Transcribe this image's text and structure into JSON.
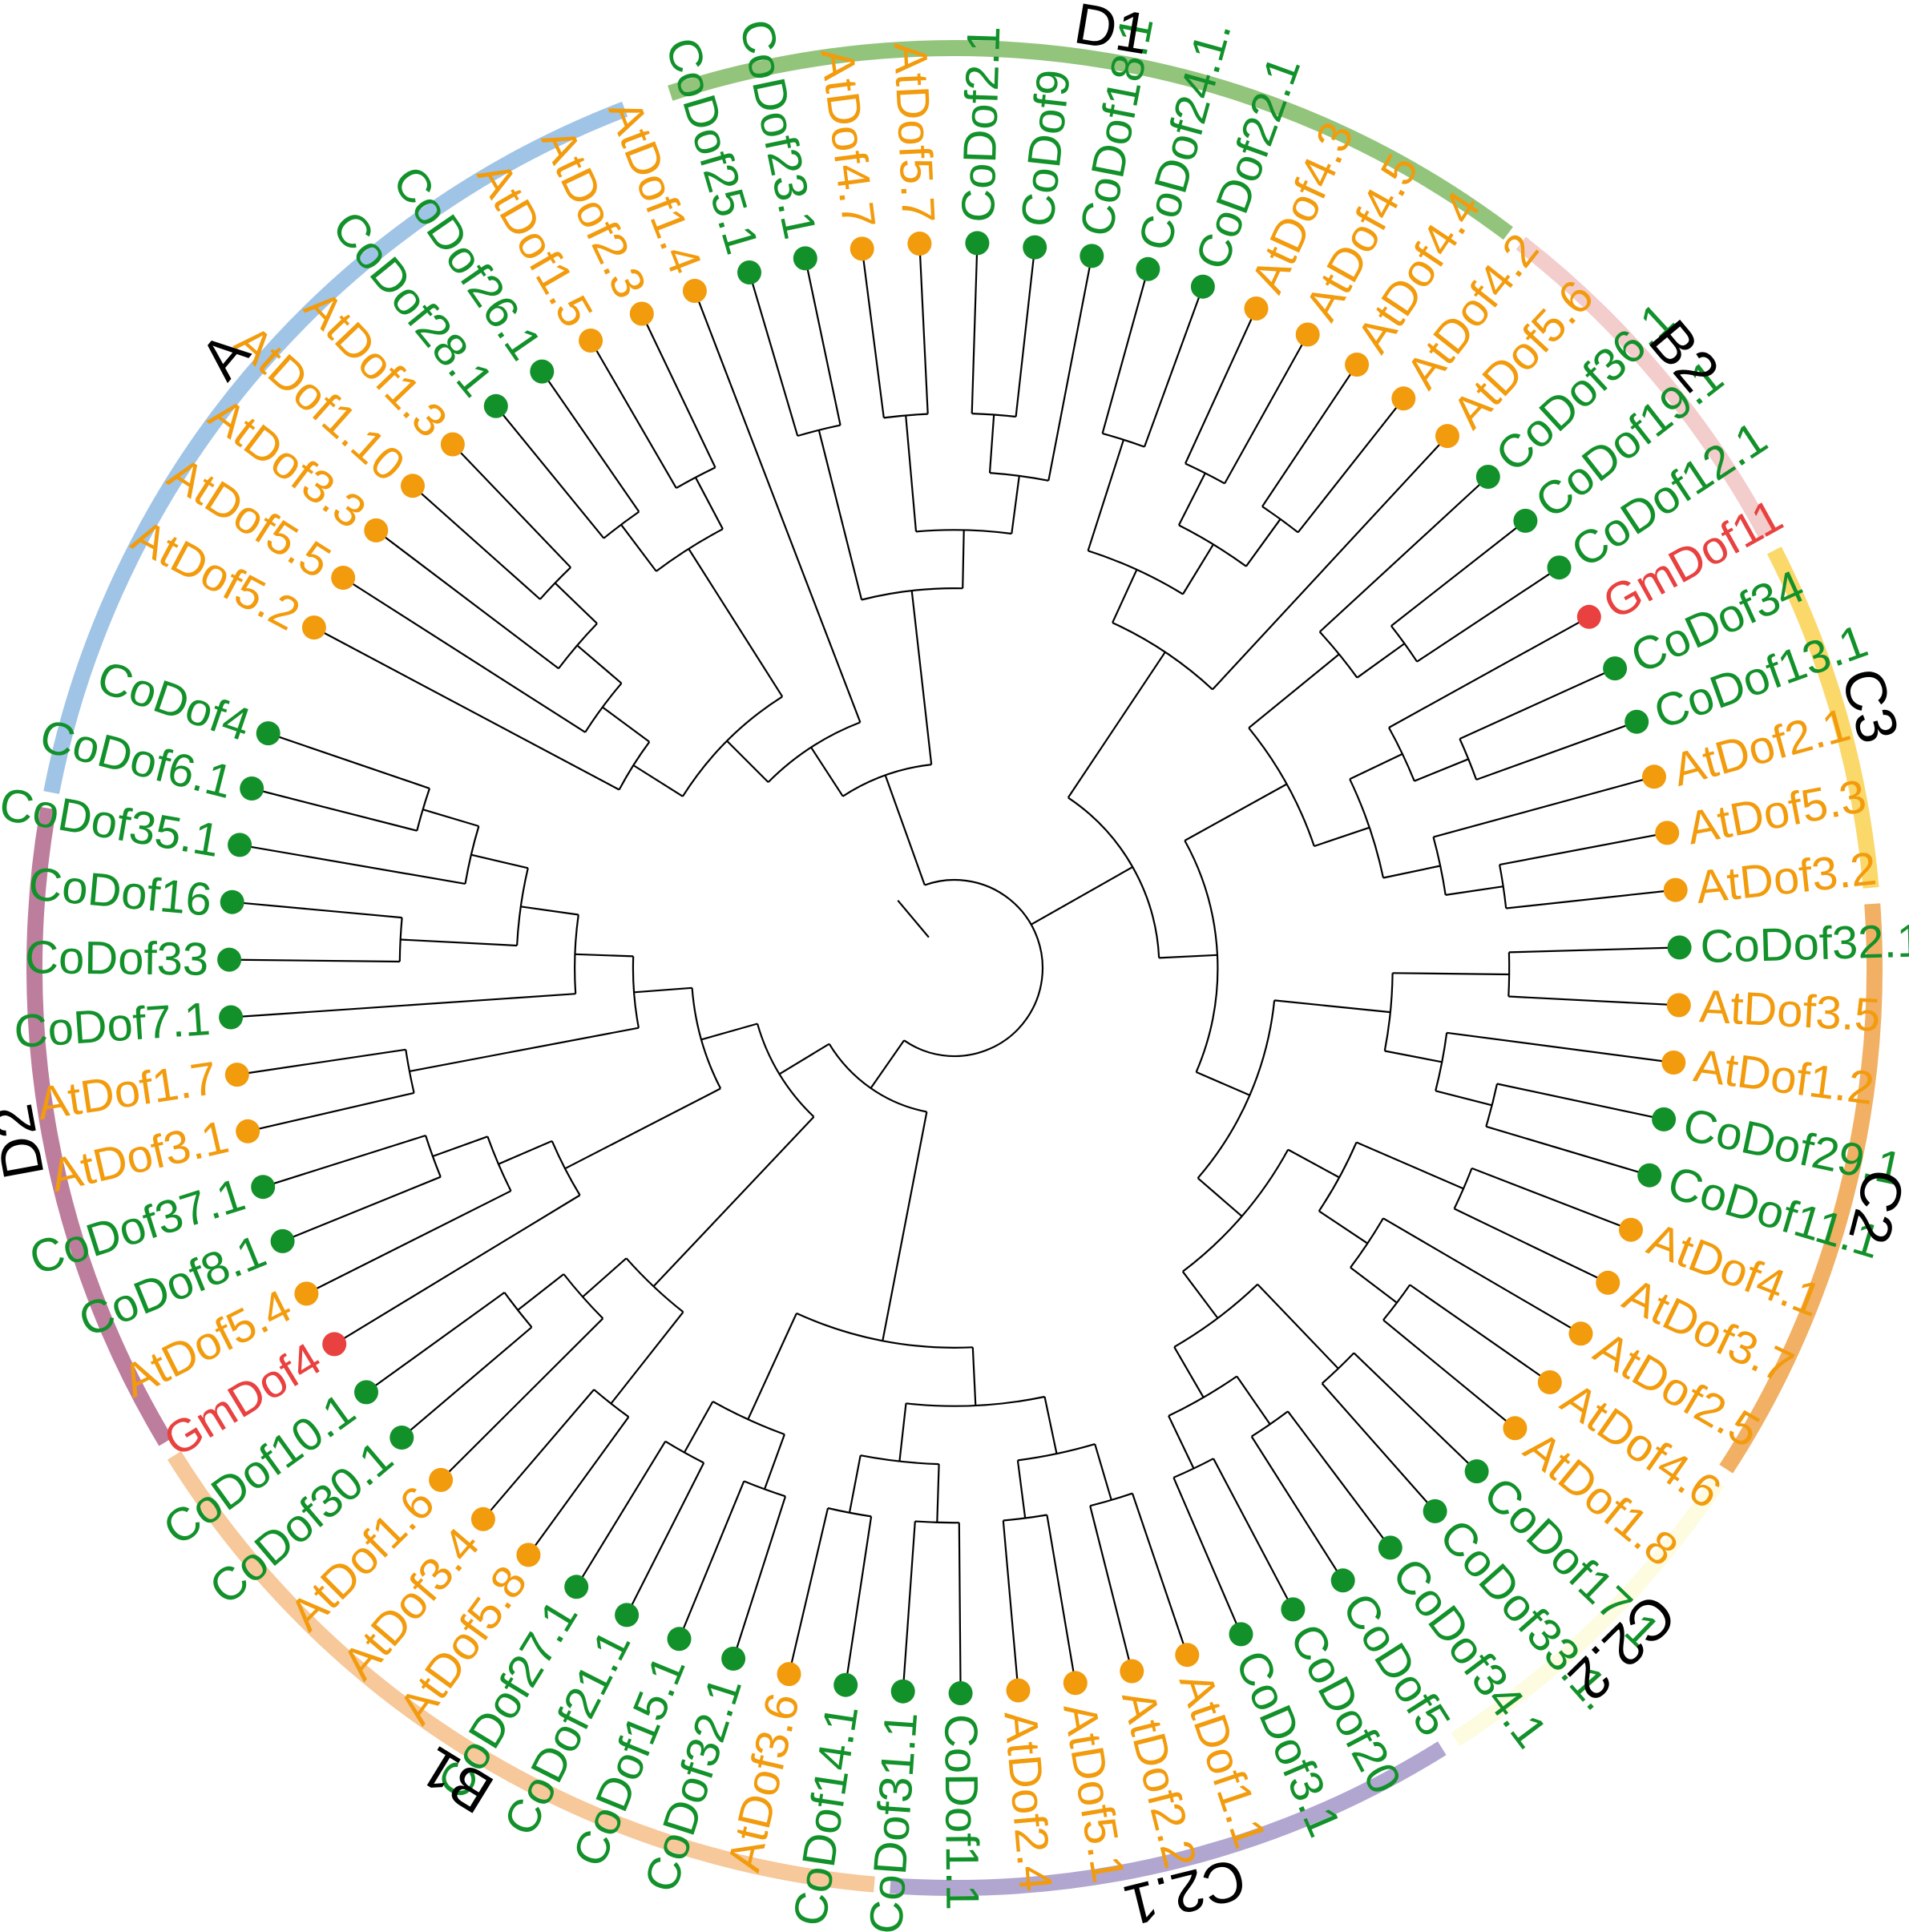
{
  "colors": {
    "Co": "#12912a",
    "At": "#f29b0c",
    "Gm": "#e8413f",
    "branch": "#000000"
  },
  "groups": [
    {
      "label": "A",
      "color": "#a0c4e6",
      "start": 111,
      "end": 169
    },
    {
      "label": "D2",
      "color": "#bd7e9e",
      "start": 170,
      "end": 211
    },
    {
      "label": "B1",
      "color": "#f6c89a",
      "start": 212,
      "end": 265
    },
    {
      "label": "C2.1",
      "color": "#b1a6d0",
      "start": 266,
      "end": 302
    },
    {
      "label": "C2.2",
      "color": "#fdfbe0",
      "start": 303,
      "end": 326
    },
    {
      "label": "C2",
      "color": "#f1b064",
      "start": 327,
      "end": 4
    },
    {
      "label": "C3",
      "color": "#fbd86a",
      "start": 5,
      "end": 27
    },
    {
      "label": "B2",
      "color": "#f3cccc",
      "start": 28,
      "end": 52
    },
    {
      "label": "D1",
      "color": "#93c47c",
      "start": 53,
      "end": 108
    }
  ],
  "taxa": [
    {
      "name": "AtDof5.2",
      "src": "At"
    },
    {
      "name": "AtDof5.5",
      "src": "At"
    },
    {
      "name": "AtDof3.3",
      "src": "At"
    },
    {
      "name": "AtDof1.10",
      "src": "At"
    },
    {
      "name": "AtDof1.3",
      "src": "At"
    },
    {
      "name": "CoDof28.1",
      "src": "Co"
    },
    {
      "name": "CoDof26.1",
      "src": "Co"
    },
    {
      "name": "AtDof1.5",
      "src": "At"
    },
    {
      "name": "AtDof2.3",
      "src": "At"
    },
    {
      "name": "AtDof1.4",
      "src": "At"
    },
    {
      "name": "CoDof25.1",
      "src": "Co"
    },
    {
      "name": "CoDof23.1",
      "src": "Co"
    },
    {
      "name": "AtDof4.7",
      "src": "At"
    },
    {
      "name": "AtDof5.7",
      "src": "At"
    },
    {
      "name": "CoDof2.1",
      "src": "Co"
    },
    {
      "name": "CoDof9",
      "src": "Co"
    },
    {
      "name": "CoDof18.1",
      "src": "Co"
    },
    {
      "name": "CoDof24.1.",
      "src": "Co"
    },
    {
      "name": "CoDof22.1",
      "src": "Co"
    },
    {
      "name": "AtDof4.3",
      "src": "At"
    },
    {
      "name": "AtDof4.5",
      "src": "At"
    },
    {
      "name": "AtDof4.4",
      "src": "At"
    },
    {
      "name": "AtDof4.2",
      "src": "At"
    },
    {
      "name": "AtDof5.6",
      "src": "At"
    },
    {
      "name": "CoDof36.1",
      "src": "Co"
    },
    {
      "name": "CoDof19.1",
      "src": "Co"
    },
    {
      "name": "CoDof12.1",
      "src": "Co"
    },
    {
      "name": "GmDof11",
      "src": "Gm"
    },
    {
      "name": "CoDof34",
      "src": "Co"
    },
    {
      "name": "CoDof13.1",
      "src": "Co"
    },
    {
      "name": "AtDof2.1",
      "src": "At"
    },
    {
      "name": "AtDof5.3",
      "src": "At"
    },
    {
      "name": "AtDof3.2",
      "src": "At"
    },
    {
      "name": "CoDof32.1",
      "src": "Co"
    },
    {
      "name": "AtDof3.5",
      "src": "At"
    },
    {
      "name": "AtDof1.2",
      "src": "At"
    },
    {
      "name": "CoDof29.1",
      "src": "Co"
    },
    {
      "name": "CoDof11.1",
      "src": "Co"
    },
    {
      "name": "AtDof4.1",
      "src": "At"
    },
    {
      "name": "AtDof3.7",
      "src": "At"
    },
    {
      "name": "AtDof2.5",
      "src": "At"
    },
    {
      "name": "AtDof4.6",
      "src": "At"
    },
    {
      "name": "AtDof1.8",
      "src": "At"
    },
    {
      "name": "CoDof17.1",
      "src": "Co"
    },
    {
      "name": "CoDof33.1.",
      "src": "Co"
    },
    {
      "name": "CoDof34.1",
      "src": "Co"
    },
    {
      "name": "CoDof5",
      "src": "Co"
    },
    {
      "name": "CoDof20",
      "src": "Co"
    },
    {
      "name": "CoDof3.1",
      "src": "Co"
    },
    {
      "name": "AtDof1.1",
      "src": "At"
    },
    {
      "name": "AtDof2.2",
      "src": "At"
    },
    {
      "name": "AtDof5.1",
      "src": "At"
    },
    {
      "name": "AtDof2.4",
      "src": "At"
    },
    {
      "name": "CoDof1.1",
      "src": "Co"
    },
    {
      "name": "CoDof31.1",
      "src": "Co"
    },
    {
      "name": "CoDof14.1",
      "src": "Co"
    },
    {
      "name": "AtDof3.6",
      "src": "At"
    },
    {
      "name": "CoDof32.1",
      "src": "Co"
    },
    {
      "name": "CoDof15.1",
      "src": "Co"
    },
    {
      "name": "CoDof21.1",
      "src": "Co"
    },
    {
      "name": "CoDof27.1",
      "src": "Co"
    },
    {
      "name": "AtDof5.8",
      "src": "At"
    },
    {
      "name": "AtDof3.4",
      "src": "At"
    },
    {
      "name": "AtDof1.6",
      "src": "At"
    },
    {
      "name": "CoDof30.1",
      "src": "Co"
    },
    {
      "name": "CoDof10.1",
      "src": "Co"
    },
    {
      "name": "GmDof4",
      "src": "Gm"
    },
    {
      "name": "AtDof5.4",
      "src": "At"
    },
    {
      "name": "CoDof8.1",
      "src": "Co"
    },
    {
      "name": "CoDof37.1",
      "src": "Co"
    },
    {
      "name": "AtDof3.1",
      "src": "At"
    },
    {
      "name": "AtDof1.7",
      "src": "At"
    },
    {
      "name": "CoDof7.1",
      "src": "Co"
    },
    {
      "name": "CoDof33",
      "src": "Co"
    },
    {
      "name": "CoDof16",
      "src": "Co"
    },
    {
      "name": "CoDof35.1",
      "src": "Co"
    },
    {
      "name": "CoDof6.1",
      "src": "Co"
    },
    {
      "name": "CoDof4",
      "src": "Co"
    }
  ],
  "tree": [
    [
      [
        [
          [
            "AtDof5.2",
            [
              "AtDof5.5",
              [
                "AtDof3.3",
                [
                  "AtDof1.10",
                  "AtDof1.3"
                ]
              ]
            ]
          ],
          [
            [
              "CoDof28.1",
              "CoDof26.1"
            ],
            [
              "AtDof1.5",
              "AtDof2.3"
            ]
          ]
        ],
        "AtDof1.4"
      ],
      [
        [
          "CoDof25.1",
          "CoDof23.1"
        ],
        [
          [
            "AtDof4.7",
            "AtDof5.7"
          ],
          [
            [
              "CoDof2.1",
              "CoDof9"
            ],
            "CoDof18.1"
          ]
        ]
      ]
    ],
    [
      [
        [
          [
            "CoDof24.1.",
            "CoDof22.1"
          ],
          [
            [
              "AtDof4.3",
              "AtDof4.5"
            ],
            [
              "AtDof4.4",
              "AtDof4.2"
            ]
          ]
        ],
        "AtDof5.6"
      ],
      [
        [
          [
            "CoDof36.1",
            [
              "CoDof19.1",
              "CoDof12.1"
            ]
          ],
          [
            [
              "GmDof11",
              [
                "CoDof34",
                "CoDof13.1"
              ]
            ],
            [
              "AtDof2.1",
              [
                "AtDof5.3",
                "AtDof3.2"
              ]
            ]
          ]
        ],
        [
          [
            [
              "CoDof32.1",
              "AtDof3.5"
            ],
            [
              "AtDof1.2",
              [
                "CoDof29.1",
                "CoDof11.1"
              ]
            ]
          ],
          [
            [
              [
                "AtDof4.1",
                "AtDof3.7"
              ],
              [
                "AtDof2.5",
                [
                  "AtDof4.6",
                  "AtDof1.8"
                ]
              ]
            ],
            [
              [
                "CoDof17.1",
                "CoDof33.1."
              ],
              [
                [
                  "CoDof34.1",
                  "CoDof5"
                ],
                [
                  "CoDof20",
                  "CoDof3.1"
                ]
              ]
            ]
          ]
        ]
      ]
    ],
    [
      [
        [
          [
            [
              "AtDof1.1",
              "AtDof2.2"
            ],
            [
              "AtDof5.1",
              "AtDof2.4"
            ]
          ],
          [
            [
              "CoDof1.1",
              "CoDof31.1"
            ],
            [
              "CoDof14.1",
              "AtDof3.6"
            ]
          ]
        ],
        [
          [
            "CoDof32.1",
            "CoDof15.1"
          ],
          [
            "CoDof21.1",
            "CoDof27.1"
          ]
        ]
      ],
      [
        [
          [
            "AtDof5.8",
            "AtDof3.4"
          ],
          [
            "AtDof1.6",
            [
              "CoDof30.1",
              "CoDof10.1"
            ]
          ]
        ],
        [
          [
            "GmDof4",
            [
              "AtDof5.4",
              [
                "CoDof8.1",
                "CoDof37.1"
              ]
            ]
          ],
          [
            [
              "AtDof3.1",
              "AtDof1.7"
            ],
            [
              "CoDof7.1",
              [
                [
                  "CoDof33",
                  "CoDof16"
                ],
                [
                  "CoDof35.1",
                  [
                    "CoDof6.1",
                    "CoDof4"
                  ]
                ]
              ]
            ]
          ]
        ]
      ]
    ]
  ]
}
